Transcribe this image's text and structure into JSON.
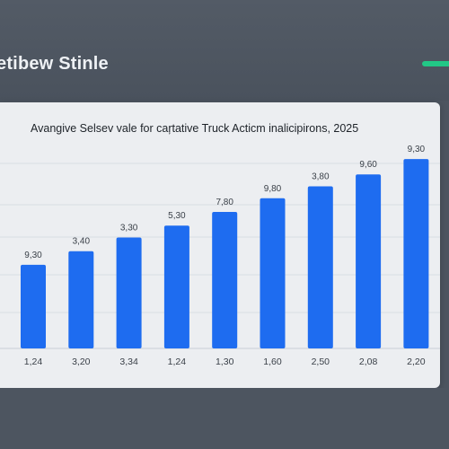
{
  "header": {
    "title": "etibew Stinle"
  },
  "colors": {
    "accent": "#22c786",
    "bar": "#1e6cf0",
    "card": "#eceef1",
    "background": "#4d5560"
  },
  "chart_data": {
    "type": "bar",
    "title": "Avangive Selsev vale for caŗtative Truck Acticm inalicipirons, 2025",
    "categories": [
      "1,24",
      "3,20",
      "3,34",
      "1,24",
      "1,30",
      "1,60",
      "2,50",
      "2,08",
      "2,20"
    ],
    "values": [
      9.3,
      3.4,
      3.3,
      5.3,
      7.8,
      9.8,
      3.8,
      9.6,
      9.3
    ],
    "value_labels": [
      "9,30",
      "3,40",
      "3,30",
      "5,30",
      "7,80",
      "9,80",
      "3,80",
      "9,60",
      "9,30"
    ],
    "heights_relative": [
      0.245,
      0.285,
      0.325,
      0.36,
      0.4,
      0.44,
      0.475,
      0.51,
      0.555
    ],
    "grid": true,
    "legend": "none"
  }
}
